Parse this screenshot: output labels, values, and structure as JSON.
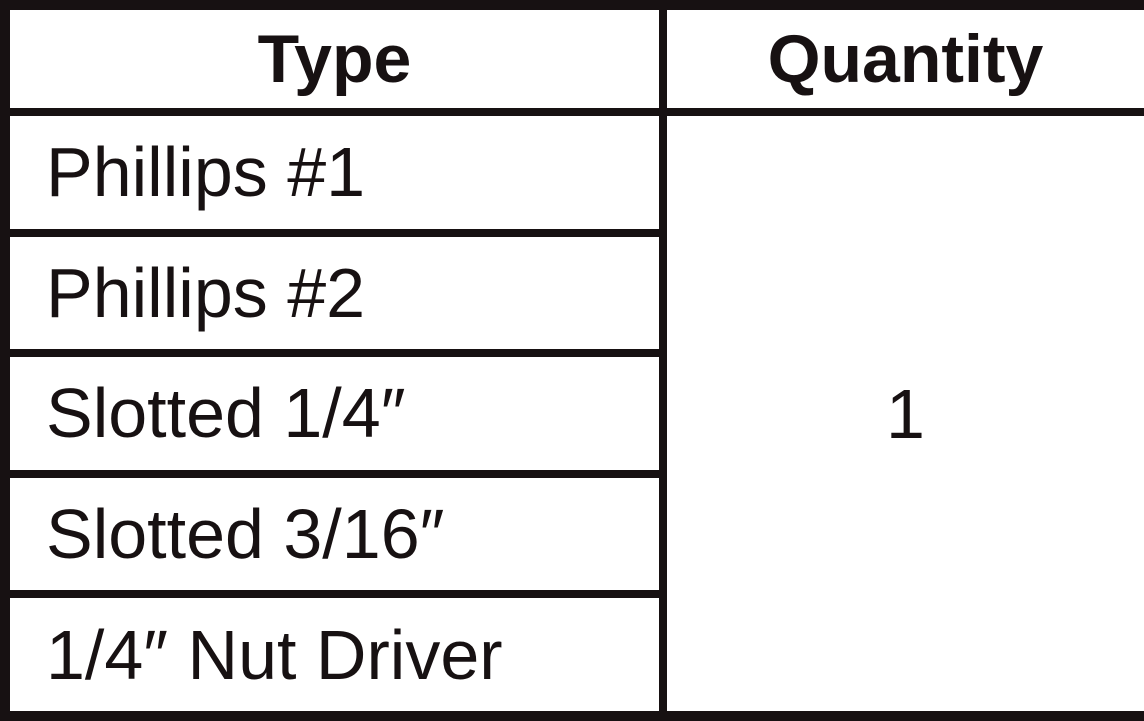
{
  "table": {
    "columns": [
      {
        "label": "Type"
      },
      {
        "label": "Quantity"
      }
    ],
    "rows": [
      {
        "type": "Phillips #1"
      },
      {
        "type": "Phillips #2"
      },
      {
        "type": "Slotted 1/4″"
      },
      {
        "type": "Slotted 3/16″"
      },
      {
        "type": "1/4″ Nut Driver"
      }
    ],
    "quantity": "1"
  },
  "chart_data": {
    "type": "table",
    "title": "",
    "columns": [
      "Type",
      "Quantity"
    ],
    "rows": [
      [
        "Phillips #1",
        "1"
      ],
      [
        "Phillips #2",
        "1"
      ],
      [
        "Slotted 1/4″",
        "1"
      ],
      [
        "Slotted 3/16″",
        "1"
      ],
      [
        "1/4″ Nut Driver",
        "1"
      ]
    ],
    "notes": "Quantity column is a single merged cell spanning all five rows with value 1"
  },
  "colors": {
    "border": "#171112",
    "background": "#ffffff",
    "text": "#171112"
  }
}
